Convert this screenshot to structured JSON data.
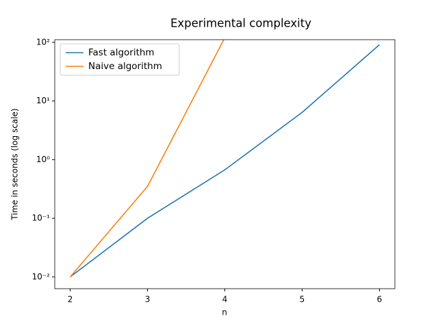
{
  "chart_data": {
    "type": "line",
    "title": "Experimental complexity",
    "x_label": "n",
    "y_label": "Time in seconds (log scale)",
    "x": [
      2,
      3,
      4,
      5,
      6
    ],
    "series": [
      {
        "name": "Fast algorithm",
        "color": "#1f77b4",
        "values": [
          0.01,
          0.1,
          0.67,
          6.4,
          91
        ]
      },
      {
        "name": "Naive algorithm",
        "color": "#ff7f0e",
        "values": [
          0.01,
          0.35,
          120,
          null,
          null
        ]
      }
    ],
    "xlim": [
      1.8,
      6.2
    ],
    "xticks": [
      2,
      3,
      4,
      5,
      6
    ],
    "ylim": [
      0.0063,
      111
    ],
    "log_y": true,
    "yticks": [
      {
        "value": 0.01,
        "label": "10⁻²"
      },
      {
        "value": 0.1,
        "label": "10⁻¹"
      },
      {
        "value": 1,
        "label": "10⁰"
      },
      {
        "value": 10,
        "label": "10¹"
      },
      {
        "value": 100,
        "label": "10²"
      }
    ],
    "legend": "upper left"
  }
}
